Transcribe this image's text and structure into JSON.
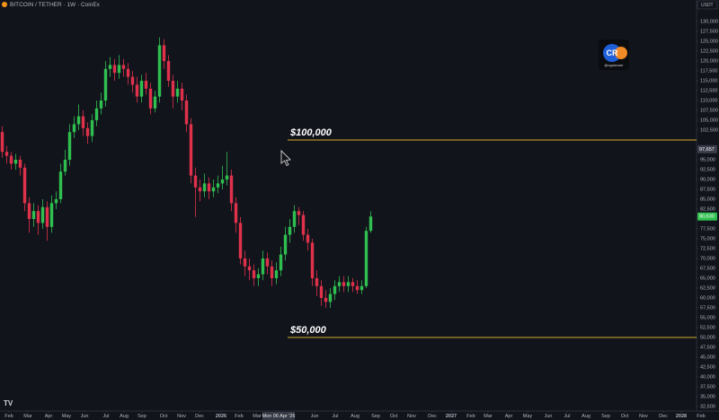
{
  "chart_data": {
    "type": "candlestick",
    "title": "BITCOIN / TETHER · 1W · CoinEx",
    "currency": "USDT",
    "logo_text": "CR",
    "watermark": "@cryptorover",
    "up_color": "#2fbf4f",
    "down_color": "#e0314b",
    "grid": false,
    "xlim": [
      0,
      160
    ],
    "ylim": [
      31364,
      135455
    ],
    "open": [
      102000,
      97000,
      96000,
      94000,
      95000,
      93000,
      84000,
      80000,
      82000,
      79000,
      83000,
      78000,
      84000,
      85000,
      92000,
      95000,
      102000,
      104000,
      106000,
      103000,
      101000,
      105000,
      108000,
      110000,
      118000,
      119000,
      117000,
      119000,
      118000,
      116000,
      114000,
      111000,
      115000,
      113000,
      108000,
      111000,
      124000,
      120000,
      115000,
      111000,
      113000,
      110000,
      104000,
      91000,
      88000,
      87000,
      89000,
      87000,
      88000,
      89000,
      90000,
      91000,
      84000,
      79000,
      70000,
      68000,
      67000,
      65000,
      66000,
      70000,
      68000,
      65000,
      67000,
      71000,
      76000,
      78000,
      82000,
      81000,
      76000,
      74000,
      65000,
      63000,
      60000,
      59000,
      61000,
      63000,
      64000,
      63000,
      64000,
      63000,
      62000,
      63000,
      77000
    ],
    "high": [
      103500,
      98500,
      97000,
      96500,
      96000,
      94000,
      85500,
      84000,
      83500,
      85000,
      84500,
      86000,
      87000,
      94000,
      97500,
      104000,
      106000,
      109000,
      107500,
      104500,
      106500,
      110000,
      112000,
      120000,
      121000,
      120500,
      121500,
      120500,
      119500,
      117500,
      116000,
      116500,
      117000,
      114500,
      112500,
      126000,
      125500,
      121500,
      116500,
      115000,
      114500,
      111500,
      105500,
      93000,
      90000,
      91500,
      90500,
      90000,
      91000,
      93500,
      97000,
      92500,
      85500,
      80500,
      72000,
      70000,
      68500,
      67500,
      72000,
      71500,
      69500,
      69000,
      73000,
      78000,
      80000,
      83500,
      83000,
      82000,
      77500,
      75000,
      67000,
      64500,
      62000,
      62500,
      64500,
      65500,
      65500,
      65500,
      65000,
      64500,
      64500,
      78000,
      82000
    ],
    "low": [
      95500,
      94000,
      92500,
      92500,
      91000,
      82000,
      76500,
      78000,
      76000,
      77500,
      74500,
      76500,
      82500,
      84000,
      91000,
      93500,
      100500,
      102500,
      101000,
      99000,
      99500,
      103500,
      106500,
      108500,
      116000,
      115000,
      115500,
      116000,
      114000,
      112000,
      109500,
      109500,
      111500,
      106500,
      107000,
      109500,
      118000,
      113500,
      108000,
      109500,
      107500,
      102000,
      89000,
      80500,
      84500,
      85500,
      85000,
      85500,
      86500,
      87500,
      88500,
      82000,
      76500,
      68500,
      65500,
      64500,
      63000,
      63000,
      64500,
      66000,
      63000,
      63500,
      65500,
      69500,
      74000,
      76500,
      78500,
      74500,
      72000,
      63000,
      60500,
      58000,
      57500,
      57500,
      59500,
      61500,
      61500,
      61500,
      61500,
      61000,
      61000,
      62500,
      76500
    ],
    "close": [
      97000,
      96000,
      94000,
      95000,
      93000,
      84000,
      80000,
      82000,
      79000,
      83000,
      78000,
      84000,
      85000,
      92000,
      95000,
      102000,
      104000,
      106000,
      103000,
      101000,
      105000,
      108000,
      110000,
      118000,
      119000,
      117000,
      119000,
      118000,
      116000,
      114000,
      111000,
      115000,
      113000,
      108000,
      111000,
      124000,
      120000,
      115000,
      111000,
      113000,
      110000,
      104000,
      91000,
      88000,
      87000,
      89000,
      87000,
      88000,
      89000,
      90000,
      91000,
      84000,
      79000,
      70000,
      68000,
      67000,
      65000,
      66000,
      70000,
      68000,
      65000,
      67000,
      71000,
      76000,
      78000,
      82000,
      81000,
      76000,
      74000,
      65000,
      63000,
      60000,
      59000,
      61000,
      63000,
      64000,
      63000,
      64000,
      63000,
      62000,
      63000,
      77000,
      80630
    ],
    "hlines": [
      {
        "value": 100000,
        "label": "$100,000",
        "color": "#d4a72c"
      },
      {
        "value": 50000,
        "label": "$50,000",
        "color": "#d4a72c"
      }
    ],
    "price_labels": [
      {
        "value": 97657,
        "label": "97,657",
        "color": "#3a3e4a"
      },
      {
        "value": 80630,
        "label": "80,630",
        "color": "#2fbf4f"
      }
    ],
    "xticks": [
      {
        "value": 2,
        "label": "Feb"
      },
      {
        "value": 6.2,
        "label": "Mar"
      },
      {
        "value": 10.8,
        "label": "Apr"
      },
      {
        "value": 14.8,
        "label": "May"
      },
      {
        "value": 18.8,
        "label": "Jun"
      },
      {
        "value": 23.6,
        "label": "Jul"
      },
      {
        "value": 27.6,
        "label": "Aug"
      },
      {
        "value": 31.6,
        "label": "Sep"
      },
      {
        "value": 36.4,
        "label": "Oct"
      },
      {
        "value": 40.4,
        "label": "Nov"
      },
      {
        "value": 44.4,
        "label": "Dec"
      },
      {
        "value": 49.2,
        "label": "2026"
      },
      {
        "value": 53.2,
        "label": "Feb"
      },
      {
        "value": 57.2,
        "label": "Mar"
      },
      {
        "value": 62,
        "label": "Mon 06 Apr '26"
      },
      {
        "value": 70,
        "label": "Jun"
      },
      {
        "value": 74.6,
        "label": "Jul"
      },
      {
        "value": 79,
        "label": "Aug"
      },
      {
        "value": 83.6,
        "label": "Sep"
      },
      {
        "value": 87.6,
        "label": "Oct"
      },
      {
        "value": 91.6,
        "label": "Nov"
      },
      {
        "value": 96.2,
        "label": "Dec"
      },
      {
        "value": 100.4,
        "label": "2027"
      },
      {
        "value": 104.8,
        "label": "Feb"
      },
      {
        "value": 108.6,
        "label": "Mar"
      },
      {
        "value": 113.2,
        "label": "Apr"
      },
      {
        "value": 117.4,
        "label": "May"
      },
      {
        "value": 122,
        "label": "Jun"
      },
      {
        "value": 126.2,
        "label": "Jul"
      },
      {
        "value": 130.4,
        "label": "Aug"
      },
      {
        "value": 134.8,
        "label": "Sep"
      },
      {
        "value": 139,
        "label": "Oct"
      },
      {
        "value": 143.2,
        "label": "Nov"
      },
      {
        "value": 147.6,
        "label": "Dec"
      },
      {
        "value": 151.6,
        "label": "2028"
      },
      {
        "value": 156,
        "label": "Feb"
      }
    ],
    "yticks": [
      {
        "value": 32500,
        "label": "32,500"
      },
      {
        "value": 35000,
        "label": "35,000"
      },
      {
        "value": 37500,
        "label": "37,500"
      },
      {
        "value": 40000,
        "label": "40,000"
      },
      {
        "value": 42500,
        "label": "42,500"
      },
      {
        "value": 45000,
        "label": "45,000"
      },
      {
        "value": 47500,
        "label": "47,500"
      },
      {
        "value": 50000,
        "label": "50,000"
      },
      {
        "value": 52500,
        "label": "52,500"
      },
      {
        "value": 55000,
        "label": "55,000"
      },
      {
        "value": 57500,
        "label": "57,500"
      },
      {
        "value": 60000,
        "label": "60,000"
      },
      {
        "value": 62500,
        "label": "62,500"
      },
      {
        "value": 65000,
        "label": "65,000"
      },
      {
        "value": 67500,
        "label": "67,500"
      },
      {
        "value": 70000,
        "label": "70,000"
      },
      {
        "value": 72500,
        "label": "72,500"
      },
      {
        "value": 75000,
        "label": "75,000"
      },
      {
        "value": 77500,
        "label": "77,500"
      },
      {
        "value": 82500,
        "label": "82,500"
      },
      {
        "value": 85000,
        "label": "85,000"
      },
      {
        "value": 87500,
        "label": "87,500"
      },
      {
        "value": 90000,
        "label": "90,000"
      },
      {
        "value": 92500,
        "label": "92,500"
      },
      {
        "value": 95000,
        "label": "95,000"
      },
      {
        "value": 102500,
        "label": "102,500"
      },
      {
        "value": 105000,
        "label": "105,000"
      },
      {
        "value": 107500,
        "label": "107,500"
      },
      {
        "value": 110000,
        "label": "110,000"
      },
      {
        "value": 112500,
        "label": "112,500"
      },
      {
        "value": 115000,
        "label": "115,000"
      },
      {
        "value": 117500,
        "label": "117,500"
      },
      {
        "value": 120000,
        "label": "120,000"
      },
      {
        "value": 122500,
        "label": "122,500"
      },
      {
        "value": 125000,
        "label": "125,000"
      },
      {
        "value": 127500,
        "label": "127,500"
      },
      {
        "value": 130000,
        "label": "130,000"
      }
    ]
  }
}
